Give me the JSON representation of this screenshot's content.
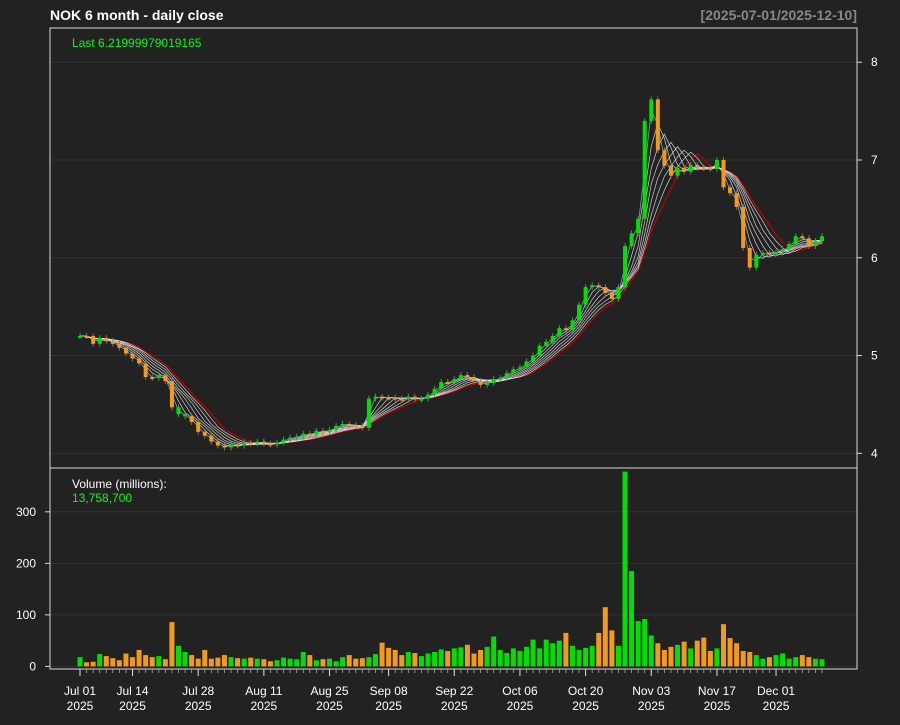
{
  "header": {
    "title": "NOK  6 month - daily close",
    "date_range": "[2025-07-01/2025-12-10]"
  },
  "colors": {
    "background": "#222222",
    "up": "#00e000",
    "down": "#f39a1e",
    "frame": "#d8d8d8",
    "grid": "#333333",
    "ma_outer": "#cc0000"
  },
  "chart_data": [
    {
      "type": "line",
      "title": "NOK  6 month - daily close",
      "subtitle": "[2025-07-01/2025-12-10]",
      "annotation": "Last 6.21999979019165",
      "ylim": [
        3.85,
        8.35
      ],
      "yticks": [
        4,
        5,
        6,
        7,
        8
      ],
      "grid": true,
      "x": [
        "2025-07-01",
        "2025-07-02",
        "2025-07-03",
        "2025-07-07",
        "2025-07-08",
        "2025-07-09",
        "2025-07-10",
        "2025-07-11",
        "2025-07-14",
        "2025-07-15",
        "2025-07-16",
        "2025-07-17",
        "2025-07-18",
        "2025-07-21",
        "2025-07-22",
        "2025-07-23",
        "2025-07-24",
        "2025-07-25",
        "2025-07-28",
        "2025-07-29",
        "2025-07-30",
        "2025-07-31",
        "2025-08-01",
        "2025-08-04",
        "2025-08-05",
        "2025-08-06",
        "2025-08-07",
        "2025-08-08",
        "2025-08-11",
        "2025-08-12",
        "2025-08-13",
        "2025-08-14",
        "2025-08-15",
        "2025-08-18",
        "2025-08-19",
        "2025-08-20",
        "2025-08-21",
        "2025-08-22",
        "2025-08-25",
        "2025-08-26",
        "2025-08-27",
        "2025-08-28",
        "2025-08-29",
        "2025-09-02",
        "2025-09-03",
        "2025-09-04",
        "2025-09-05",
        "2025-09-08",
        "2025-09-09",
        "2025-09-10",
        "2025-09-11",
        "2025-09-12",
        "2025-09-15",
        "2025-09-16",
        "2025-09-17",
        "2025-09-18",
        "2025-09-19",
        "2025-09-22",
        "2025-09-23",
        "2025-09-24",
        "2025-09-25",
        "2025-09-26",
        "2025-09-29",
        "2025-09-30",
        "2025-10-01",
        "2025-10-02",
        "2025-10-03",
        "2025-10-06",
        "2025-10-07",
        "2025-10-08",
        "2025-10-09",
        "2025-10-10",
        "2025-10-13",
        "2025-10-14",
        "2025-10-15",
        "2025-10-16",
        "2025-10-17",
        "2025-10-20",
        "2025-10-21",
        "2025-10-22",
        "2025-10-23",
        "2025-10-24",
        "2025-10-27",
        "2025-10-28",
        "2025-10-29",
        "2025-10-30",
        "2025-10-31",
        "2025-11-03",
        "2025-11-04",
        "2025-11-05",
        "2025-11-06",
        "2025-11-07",
        "2025-11-10",
        "2025-11-11",
        "2025-11-12",
        "2025-11-13",
        "2025-11-14",
        "2025-11-17",
        "2025-11-18",
        "2025-11-19",
        "2025-11-20",
        "2025-11-21",
        "2025-11-24",
        "2025-11-25",
        "2025-11-26",
        "2025-11-28",
        "2025-12-01",
        "2025-12-02",
        "2025-12-03",
        "2025-12-04",
        "2025-12-05",
        "2025-12-08",
        "2025-12-09",
        "2025-12-10"
      ],
      "series": [
        {
          "close": [
            5.2,
            5.2,
            5.12,
            5.18,
            5.15,
            5.12,
            5.08,
            5.02,
            4.97,
            4.92,
            4.78,
            4.77,
            4.8,
            4.74,
            4.47,
            4.4,
            4.38,
            4.32,
            4.22,
            4.18,
            4.12,
            4.08,
            4.06,
            4.09,
            4.08,
            4.11,
            4.1,
            4.12,
            4.1,
            4.09,
            4.11,
            4.14,
            4.16,
            4.17,
            4.2,
            4.19,
            4.23,
            4.22,
            4.24,
            4.28,
            4.3,
            4.29,
            4.28,
            4.26,
            4.56,
            4.58,
            4.57,
            4.57,
            4.56,
            4.55,
            4.58,
            4.55,
            4.56,
            4.6,
            4.66,
            4.73,
            4.72,
            4.76,
            4.8,
            4.78,
            4.74,
            4.7,
            4.72,
            4.76,
            4.77,
            4.82,
            4.86,
            4.88,
            4.94,
            5.0,
            5.1,
            5.14,
            5.2,
            5.28,
            5.26,
            5.36,
            5.52,
            5.7,
            5.72,
            5.7,
            5.64,
            5.58,
            5.7,
            6.12,
            6.25,
            6.4,
            7.4,
            7.62,
            7.1,
            6.94,
            6.84,
            6.92,
            6.88,
            6.95,
            6.92,
            6.92,
            6.91,
            7.0,
            6.72,
            6.66,
            6.52,
            6.1,
            5.9,
            6.03,
            6.05,
            6.05,
            6.06,
            6.09,
            6.14,
            6.22,
            6.2,
            6.12,
            6.17,
            6.22
          ],
          "up": [
            true,
            false,
            false,
            true,
            false,
            false,
            false,
            false,
            false,
            false,
            false,
            false,
            true,
            false,
            false,
            true,
            true,
            false,
            false,
            false,
            false,
            false,
            false,
            true,
            false,
            true,
            false,
            true,
            false,
            false,
            true,
            true,
            true,
            true,
            true,
            false,
            true,
            false,
            true,
            true,
            true,
            false,
            false,
            false,
            true,
            true,
            false,
            false,
            false,
            false,
            true,
            false,
            true,
            true,
            true,
            true,
            false,
            true,
            true,
            false,
            false,
            false,
            true,
            true,
            true,
            true,
            true,
            true,
            true,
            true,
            true,
            true,
            true,
            true,
            false,
            true,
            true,
            true,
            true,
            false,
            false,
            false,
            true,
            true,
            true,
            true,
            true,
            true,
            false,
            false,
            false,
            true,
            false,
            true,
            false,
            false,
            false,
            true,
            false,
            false,
            false,
            false,
            false,
            true,
            true,
            false,
            true,
            true,
            true,
            true,
            false,
            false,
            true,
            true
          ]
        }
      ],
      "xticks": [
        {
          "d": "Jul 01",
          "y": "2025"
        },
        {
          "d": "Jul 14",
          "y": "2025"
        },
        {
          "d": "Jul 28",
          "y": "2025"
        },
        {
          "d": "Aug 11",
          "y": "2025"
        },
        {
          "d": "Aug 25",
          "y": "2025"
        },
        {
          "d": "Sep 08",
          "y": "2025"
        },
        {
          "d": "Sep 22",
          "y": "2025"
        },
        {
          "d": "Oct 06",
          "y": "2025"
        },
        {
          "d": "Oct 20",
          "y": "2025"
        },
        {
          "d": "Nov 03",
          "y": "2025"
        },
        {
          "d": "Nov 17",
          "y": "2025"
        },
        {
          "d": "Dec 01",
          "y": "2025"
        }
      ]
    },
    {
      "type": "bar",
      "title": "Volume (millions):",
      "annotation": "13,758,700",
      "ylim": [
        -5,
        385
      ],
      "yticks": [
        0,
        100,
        200,
        300
      ],
      "grid": true,
      "values": [
        18,
        8,
        9,
        24,
        20,
        16,
        12,
        25,
        18,
        32,
        22,
        18,
        20,
        14,
        86,
        40,
        28,
        22,
        15,
        32,
        15,
        17,
        22,
        18,
        16,
        15,
        17,
        15,
        14,
        10,
        12,
        17,
        15,
        14,
        28,
        22,
        12,
        14,
        15,
        10,
        18,
        22,
        15,
        16,
        18,
        24,
        46,
        36,
        32,
        22,
        28,
        26,
        20,
        25,
        28,
        33,
        30,
        35,
        37,
        42,
        25,
        32,
        38,
        58,
        32,
        26,
        35,
        30,
        38,
        52,
        35,
        52,
        45,
        50,
        65,
        40,
        32,
        36,
        40,
        65,
        115,
        70,
        40,
        378,
        185,
        88,
        92,
        60,
        45,
        32,
        38,
        42,
        48,
        35,
        50,
        56,
        30,
        35,
        82,
        55,
        45,
        30,
        28,
        22,
        15,
        18,
        22,
        25,
        15,
        18,
        22,
        18,
        15,
        14
      ]
    }
  ]
}
